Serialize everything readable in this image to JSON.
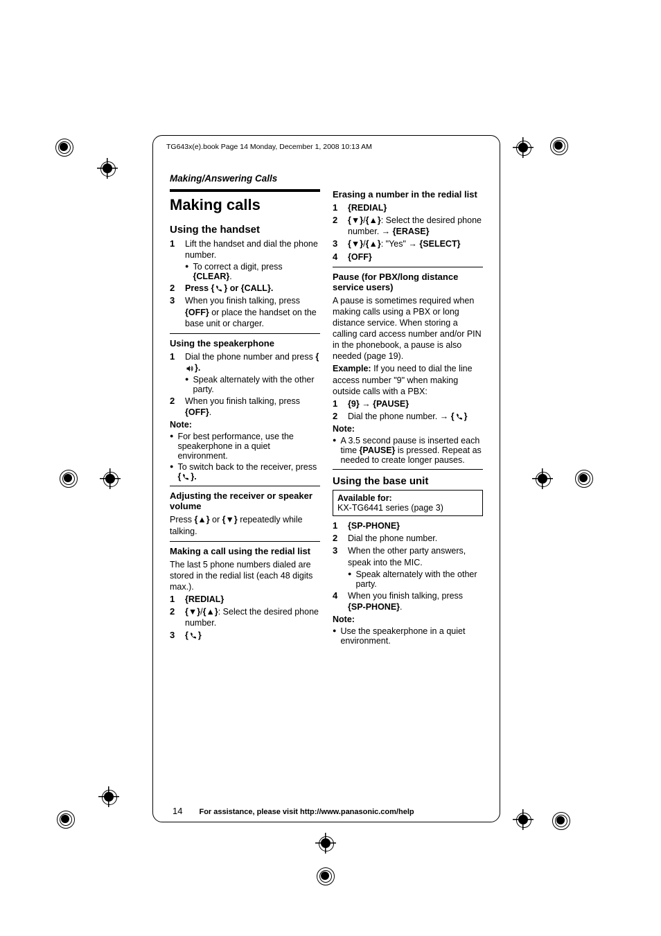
{
  "meta_line": "TG643x(e).book  Page 14  Monday, December 1, 2008  10:13 AM",
  "section": "Making/Answering Calls",
  "title": "Making calls",
  "left": {
    "h_handset": "Using the handset",
    "s1": "Lift the handset and dial the phone number.",
    "s1b": "To correct a digit, press {CLEAR}.",
    "s2a": "Press {",
    "s2b": "} or {CALL}.",
    "s3": "When you finish talking, press {OFF} or place the handset on the base unit or charger.",
    "h_speaker": "Using the speakerphone",
    "sp1a": "Dial the phone number and press {",
    "sp1b": "}.",
    "sp1c": "Speak alternately with the other party.",
    "sp2": "When you finish talking, press {OFF}.",
    "note": "Note:",
    "nb1": "For best performance, use the speakerphone in a quiet environment.",
    "nb2a": "To switch back to the receiver, press {",
    "nb2b": "}.",
    "h_vol": "Adjusting the receiver or speaker volume",
    "vol": "Press {▲} or {▼} repeatedly while talking.",
    "h_redial": "Making a call using the redial list",
    "redial_intro": "The last 5 phone numbers dialed are stored in the redial list (each 48 digits max.).",
    "r1": "{REDIAL}",
    "r2": "{▼}/{▲}: Select the desired phone number.",
    "r3a": "{",
    "r3b": "}"
  },
  "right": {
    "h_erase": "Erasing a number in the redial list",
    "e1": "{REDIAL}",
    "e2": "{▼}/{▲}: Select the desired phone number. → {ERASE}",
    "e3": "{▼}/{▲}: \"Yes\" → {SELECT}",
    "e4": "{OFF}",
    "h_pause": "Pause (for PBX/long distance service users)",
    "pause_p": "A pause is sometimes required when making calls using a PBX or long distance service. When storing a calling card access number and/or PIN in the phonebook, a pause is also needed (page 19).",
    "example_label": "Example:",
    "example_txt": " If you need to dial the line access number \"9\" when making outside calls with a PBX:",
    "p1": "{9} → {PAUSE}",
    "p2a": "Dial the phone number. → {",
    "p2b": "}",
    "note": "Note:",
    "pn1": "A 3.5 second pause is inserted each time {PAUSE} is pressed. Repeat as needed to create longer pauses.",
    "h_base": "Using the base unit",
    "avail_ttl": "Available for:",
    "avail_txt": "KX-TG6441 series (page 3)",
    "b1": "{SP-PHONE}",
    "b2": "Dial the phone number.",
    "b3": "When the other party answers, speak into the MIC.",
    "b3a": "Speak alternately with the other party.",
    "b4": "When you finish talking, press {SP-PHONE}.",
    "bn1": "Use the speakerphone in a quiet environment."
  },
  "footer": {
    "page": "14",
    "help": "For assistance, please visit http://www.panasonic.com/help"
  }
}
